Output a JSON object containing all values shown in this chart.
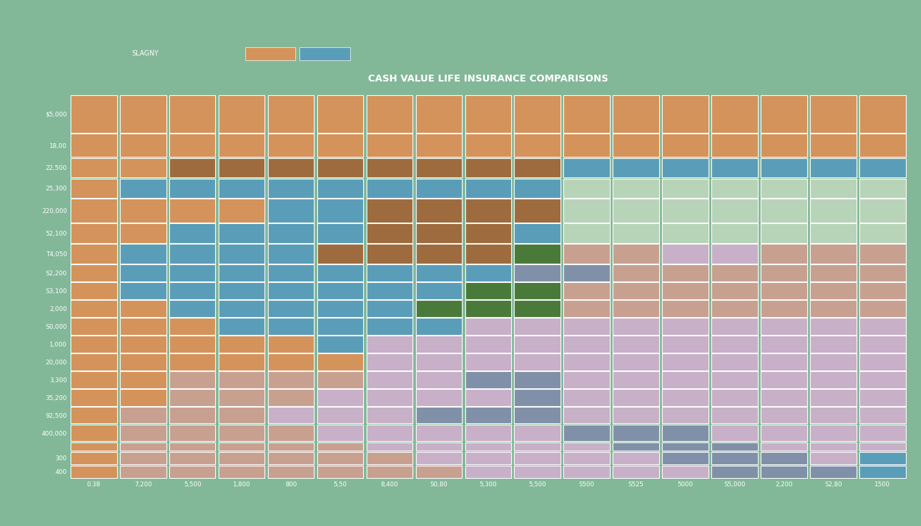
{
  "title": "CASH VALUE LIFE INSURANCE COMPARISONS",
  "legend_label": "SLAGNY",
  "background_color": "#82b898",
  "header_color": "#1e2d40",
  "row_labels": [
    "$5,000",
    "18,00",
    "22,500",
    "25,300",
    "220,000",
    "52,100",
    "T4,050",
    "S2,200",
    "S3,100",
    "2,000",
    "S0,000",
    "1,000",
    "20,000",
    "3,300",
    "35,200",
    "92,500",
    "400,000",
    "",
    "300",
    "400"
  ],
  "col_labels": [
    "0.38",
    "7,200",
    "5,500",
    "1,800",
    "800",
    "5,50",
    "8,400",
    "S0,80",
    "5,300",
    "5,500",
    "S500",
    "S525",
    "5000",
    "S5,000",
    "2,200",
    "S2,80",
    "1500"
  ],
  "num_rows": 20,
  "num_cols": 17,
  "row_heights": [
    2.8,
    1.8,
    1.5,
    1.5,
    1.8,
    1.5,
    1.5,
    1.3,
    1.3,
    1.3,
    1.3,
    1.3,
    1.3,
    1.3,
    1.3,
    1.3,
    1.3,
    0.7,
    1.0,
    1.0
  ],
  "cell_colors": [
    [
      "#d4935a",
      "#d4935a",
      "#d4935a",
      "#d4935a",
      "#d4935a",
      "#d4935a",
      "#d4935a",
      "#d4935a",
      "#d4935a",
      "#d4935a",
      "#d4935a",
      "#d4935a",
      "#d4935a",
      "#d4935a",
      "#d4935a",
      "#d4935a",
      "#d4935a"
    ],
    [
      "#d4935a",
      "#d4935a",
      "#d4935a",
      "#d4935a",
      "#d4935a",
      "#d4935a",
      "#d4935a",
      "#d4935a",
      "#d4935a",
      "#d4935a",
      "#d4935a",
      "#d4935a",
      "#d4935a",
      "#d4935a",
      "#d4935a",
      "#d4935a",
      "#d4935a"
    ],
    [
      "#d4935a",
      "#d4935a",
      "#9e6b3e",
      "#9e6b3e",
      "#9e6b3e",
      "#9e6b3e",
      "#9e6b3e",
      "#9e6b3e",
      "#9e6b3e",
      "#9e6b3e",
      "#5a9db8",
      "#5a9db8",
      "#5a9db8",
      "#5a9db8",
      "#5a9db8",
      "#5a9db8",
      "#5a9db8"
    ],
    [
      "#d4935a",
      "#5a9db8",
      "#5a9db8",
      "#5a9db8",
      "#5a9db8",
      "#5a9db8",
      "#5a9db8",
      "#5a9db8",
      "#5a9db8",
      "#5a9db8",
      "#b8d4b8",
      "#b8d4b8",
      "#b8d4b8",
      "#b8d4b8",
      "#b8d4b8",
      "#b8d4b8",
      "#b8d4b8"
    ],
    [
      "#d4935a",
      "#d4935a",
      "#d4935a",
      "#d4935a",
      "#5a9db8",
      "#5a9db8",
      "#9e6b3e",
      "#9e6b3e",
      "#9e6b3e",
      "#9e6b3e",
      "#b8d4b8",
      "#b8d4b8",
      "#b8d4b8",
      "#b8d4b8",
      "#b8d4b8",
      "#b8d4b8",
      "#b8d4b8"
    ],
    [
      "#d4935a",
      "#d4935a",
      "#5a9db8",
      "#5a9db8",
      "#5a9db8",
      "#5a9db8",
      "#9e6b3e",
      "#9e6b3e",
      "#9e6b3e",
      "#5a9db8",
      "#b8d4b8",
      "#b8d4b8",
      "#b8d4b8",
      "#b8d4b8",
      "#b8d4b8",
      "#b8d4b8",
      "#b8d4b8"
    ],
    [
      "#d4935a",
      "#5a9db8",
      "#5a9db8",
      "#5a9db8",
      "#5a9db8",
      "#9e6b3e",
      "#9e6b3e",
      "#9e6b3e",
      "#9e6b3e",
      "#4a7a3a",
      "#c8a090",
      "#c8a090",
      "#c8b0c8",
      "#c8b0c8",
      "#c8a090",
      "#c8a090",
      "#c8a090"
    ],
    [
      "#d4935a",
      "#5a9db8",
      "#5a9db8",
      "#5a9db8",
      "#5a9db8",
      "#5a9db8",
      "#5a9db8",
      "#5a9db8",
      "#5a9db8",
      "#8090a8",
      "#8090a8",
      "#c8a090",
      "#c8a090",
      "#c8a090",
      "#c8a090",
      "#c8a090",
      "#c8a090"
    ],
    [
      "#d4935a",
      "#5a9db8",
      "#5a9db8",
      "#5a9db8",
      "#5a9db8",
      "#5a9db8",
      "#5a9db8",
      "#5a9db8",
      "#4a7a3a",
      "#4a7a3a",
      "#c8a090",
      "#c8a090",
      "#c8a090",
      "#c8a090",
      "#c8a090",
      "#c8a090",
      "#c8a090"
    ],
    [
      "#d4935a",
      "#d4935a",
      "#5a9db8",
      "#5a9db8",
      "#5a9db8",
      "#5a9db8",
      "#5a9db8",
      "#4a7a3a",
      "#4a7a3a",
      "#4a7a3a",
      "#c8a090",
      "#c8a090",
      "#c8a090",
      "#c8a090",
      "#c8a090",
      "#c8a090",
      "#c8a090"
    ],
    [
      "#d4935a",
      "#d4935a",
      "#d4935a",
      "#5a9db8",
      "#5a9db8",
      "#5a9db8",
      "#5a9db8",
      "#5a9db8",
      "#c8b0c8",
      "#c8b0c8",
      "#c8b0c8",
      "#c8b0c8",
      "#c8b0c8",
      "#c8b0c8",
      "#c8b0c8",
      "#c8b0c8",
      "#c8b0c8"
    ],
    [
      "#d4935a",
      "#d4935a",
      "#d4935a",
      "#d4935a",
      "#d4935a",
      "#5a9db8",
      "#c8b0c8",
      "#c8b0c8",
      "#c8b0c8",
      "#c8b0c8",
      "#c8b0c8",
      "#c8b0c8",
      "#c8b0c8",
      "#c8b0c8",
      "#c8b0c8",
      "#c8b0c8",
      "#c8b0c8"
    ],
    [
      "#d4935a",
      "#d4935a",
      "#d4935a",
      "#d4935a",
      "#d4935a",
      "#d4935a",
      "#c8b0c8",
      "#c8b0c8",
      "#c8b0c8",
      "#c8b0c8",
      "#c8b0c8",
      "#c8b0c8",
      "#c8b0c8",
      "#c8b0c8",
      "#c8b0c8",
      "#c8b0c8",
      "#c8b0c8"
    ],
    [
      "#d4935a",
      "#d4935a",
      "#c8a090",
      "#c8a090",
      "#c8a090",
      "#c8a090",
      "#c8b0c8",
      "#c8b0c8",
      "#8090a8",
      "#8090a8",
      "#c8b0c8",
      "#c8b0c8",
      "#c8b0c8",
      "#c8b0c8",
      "#c8b0c8",
      "#c8b0c8",
      "#c8b0c8"
    ],
    [
      "#d4935a",
      "#d4935a",
      "#c8a090",
      "#c8a090",
      "#c8a090",
      "#c8b0c8",
      "#c8b0c8",
      "#c8b0c8",
      "#c8b0c8",
      "#8090a8",
      "#c8b0c8",
      "#c8b0c8",
      "#c8b0c8",
      "#c8b0c8",
      "#c8b0c8",
      "#c8b0c8",
      "#c8b0c8"
    ],
    [
      "#d4935a",
      "#c8a090",
      "#c8a090",
      "#c8a090",
      "#c8b0c8",
      "#c8b0c8",
      "#c8b0c8",
      "#8090a8",
      "#8090a8",
      "#8090a8",
      "#c8b0c8",
      "#c8b0c8",
      "#c8b0c8",
      "#c8b0c8",
      "#c8b0c8",
      "#c8b0c8",
      "#c8b0c8"
    ],
    [
      "#d4935a",
      "#c8a090",
      "#c8a090",
      "#c8a090",
      "#c8a090",
      "#c8b0c8",
      "#c8b0c8",
      "#c8b0c8",
      "#c8b0c8",
      "#c8b0c8",
      "#8090a8",
      "#8090a8",
      "#8090a8",
      "#c8b0c8",
      "#c8b0c8",
      "#c8b0c8",
      "#c8b0c8"
    ],
    [
      "#d4935a",
      "#c8a090",
      "#c8a090",
      "#c8a090",
      "#c8a090",
      "#c8a090",
      "#c8b0c8",
      "#c8b0c8",
      "#c8b0c8",
      "#c8b0c8",
      "#c8b0c8",
      "#8090a8",
      "#8090a8",
      "#8090a8",
      "#c8b0c8",
      "#c8b0c8",
      "#c8b0c8"
    ],
    [
      "#d4935a",
      "#c8a090",
      "#c8a090",
      "#c8a090",
      "#c8a090",
      "#c8a090",
      "#c8a090",
      "#c8b0c8",
      "#c8b0c8",
      "#c8b0c8",
      "#c8b0c8",
      "#c8b0c8",
      "#8090a8",
      "#8090a8",
      "#8090a8",
      "#c8b0c8",
      "#5a9db8"
    ],
    [
      "#d4935a",
      "#c8a090",
      "#c8a090",
      "#c8a090",
      "#c8a090",
      "#c8a090",
      "#c8a090",
      "#c8a090",
      "#c8b0c8",
      "#c8b0c8",
      "#c8b0c8",
      "#c8b0c8",
      "#c8b0c8",
      "#8090a8",
      "#8090a8",
      "#8090a8",
      "#5a9db8"
    ]
  ],
  "title_fontsize": 10,
  "label_fontsize": 6.5
}
